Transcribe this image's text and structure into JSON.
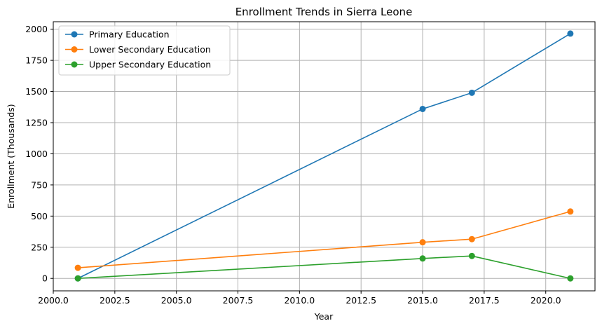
{
  "chart_data": {
    "type": "line",
    "title": "Enrollment Trends in Sierra Leone",
    "xlabel": "Year",
    "ylabel": "Enrollment (Thousands)",
    "xlim": [
      2000.0,
      2022.0
    ],
    "ylim": [
      -100,
      2060
    ],
    "xticks": [
      2000.0,
      2002.5,
      2005.0,
      2007.5,
      2010.0,
      2012.5,
      2015.0,
      2017.5,
      2020.0
    ],
    "xtick_labels": [
      "2000.0",
      "2002.5",
      "2005.0",
      "2007.5",
      "2010.0",
      "2012.5",
      "2015.0",
      "2017.5",
      "2020.0"
    ],
    "yticks": [
      0,
      250,
      500,
      750,
      1000,
      1250,
      1500,
      1750,
      2000
    ],
    "ytick_labels": [
      "0",
      "250",
      "500",
      "750",
      "1000",
      "1250",
      "1500",
      "1750",
      "2000"
    ],
    "grid": true,
    "legend_position": "top-left",
    "x": [
      2001,
      2015,
      2017,
      2021
    ],
    "series": [
      {
        "name": "Primary Education",
        "color": "#1f77b4",
        "values": [
          0,
          1360,
          1490,
          1965
        ]
      },
      {
        "name": "Lower Secondary Education",
        "color": "#ff7f0e",
        "values": [
          85,
          290,
          315,
          537
        ]
      },
      {
        "name": "Upper Secondary Education",
        "color": "#2ca02c",
        "values": [
          0,
          160,
          180,
          0
        ]
      }
    ]
  }
}
